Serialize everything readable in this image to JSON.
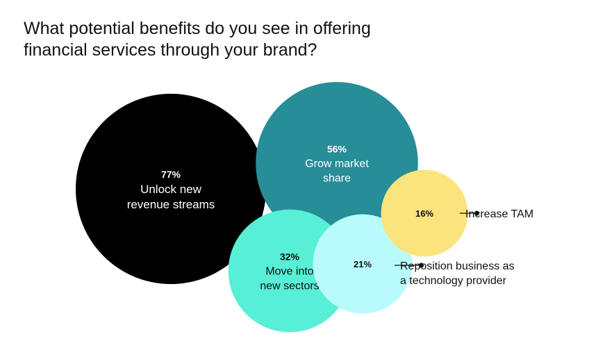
{
  "title_lines": [
    "What potential benefits do you see in offering",
    "financial services through your brand?"
  ],
  "chart_data": {
    "type": "bubble",
    "title": "What potential benefits do you see in offering financial services through your brand?",
    "unit": "%",
    "bubbles": [
      {
        "value": 77,
        "pct_label": "77%",
        "label_lines": [
          "Unlock new",
          "revenue streams"
        ],
        "color": "#000000",
        "text_color": "#ffffff",
        "label_inside": true
      },
      {
        "value": 56,
        "pct_label": "56%",
        "label_lines": [
          "Grow market",
          "share"
        ],
        "color": "#278d96",
        "text_color": "#ffffff",
        "label_inside": true
      },
      {
        "value": 32,
        "pct_label": "32%",
        "label_lines": [
          "Move into",
          "new sectors"
        ],
        "color": "#57efd6",
        "text_color": "#111111",
        "label_inside": true
      },
      {
        "value": 21,
        "pct_label": "21%",
        "label_lines": [
          "Reposition business as",
          "a technology provider"
        ],
        "color": "#b9fbfd",
        "text_color": "#111111",
        "label_inside": false
      },
      {
        "value": 16,
        "pct_label": "16%",
        "label_lines": [
          "Increase TAM"
        ],
        "color": "#fbe37d",
        "text_color": "#111111",
        "label_inside": false
      }
    ]
  }
}
